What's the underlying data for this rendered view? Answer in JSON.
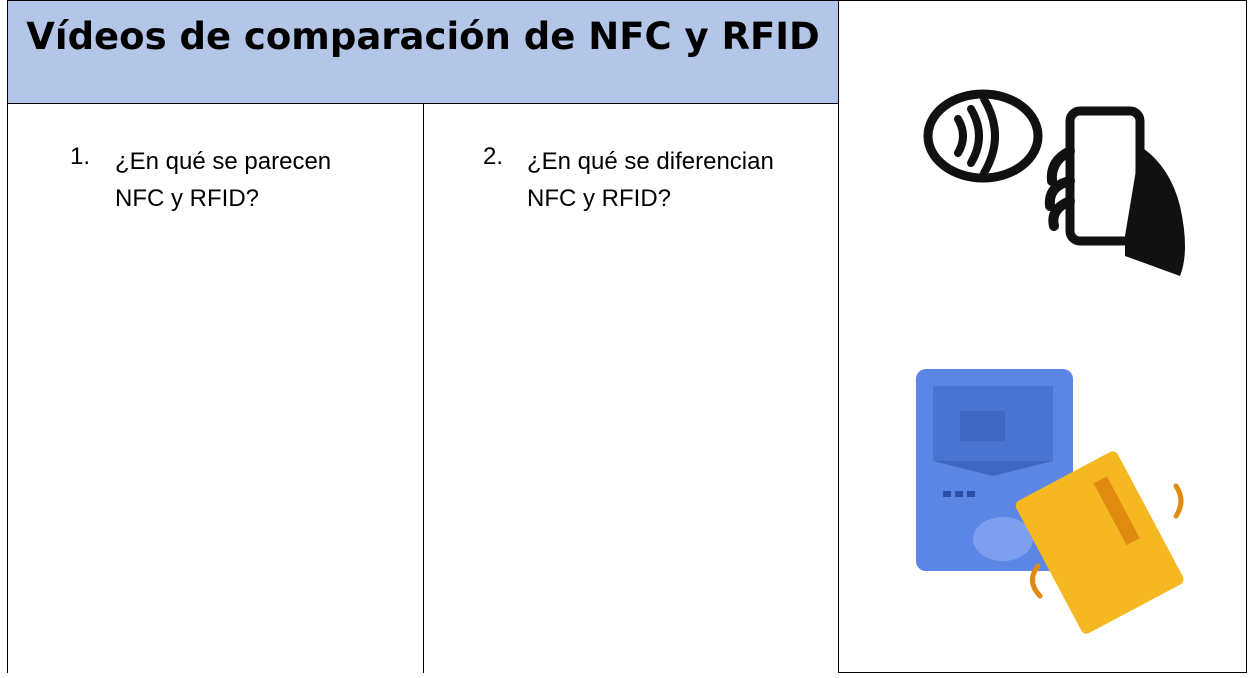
{
  "header": {
    "title": "Vídeos de comparación de NFC y RFID"
  },
  "questions": [
    {
      "number": "1.",
      "text": "¿En qué se parecen NFC y RFID?"
    },
    {
      "number": "2.",
      "text": "¿En qué se diferencian NFC y RFID?"
    }
  ]
}
